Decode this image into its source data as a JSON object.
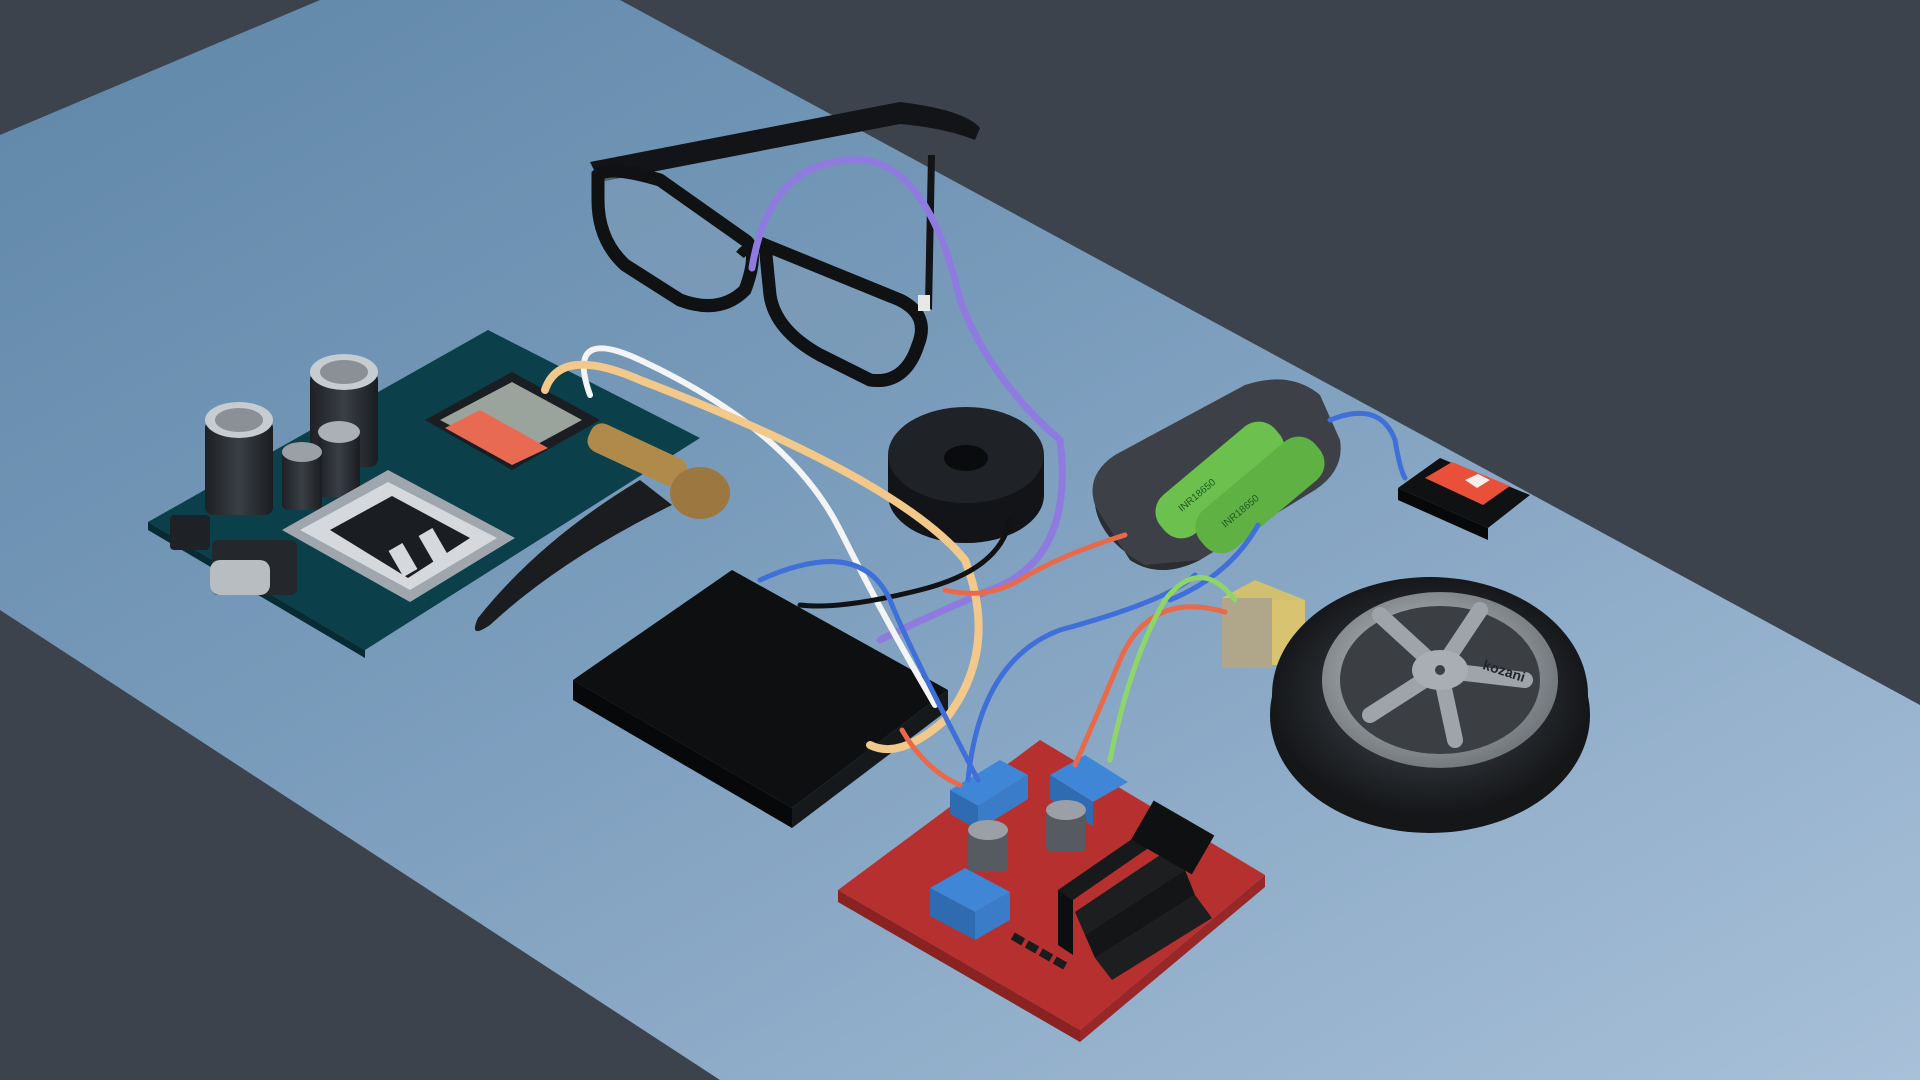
{
  "scene": {
    "description_colors": {
      "background": "#3d434c",
      "table": "#7f9fbd",
      "glasses": "#101214",
      "esp_board": "#0e4550",
      "driver_board": "#b83030",
      "battery_cells": "#6fbf4f",
      "switch": "#e8503a",
      "wire_purple": "#8f7be0",
      "wire_blue": "#3f6fd8",
      "wire_yellow": "#f2c98a",
      "wire_green": "#8fd66a",
      "wire_red": "#e86a4a"
    }
  },
  "labels": {
    "wheel_brand": "kozani",
    "battery_text_1": "INR18650",
    "battery_text_2": "INR18650"
  }
}
